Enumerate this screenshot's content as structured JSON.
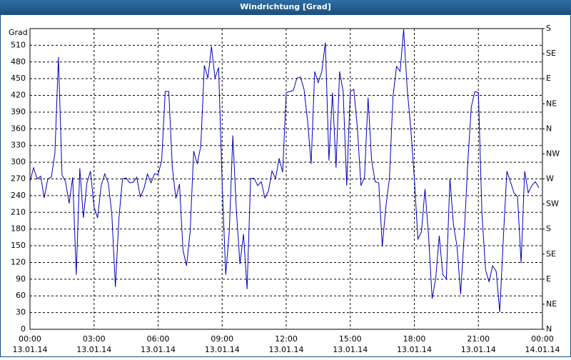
{
  "chart_data": {
    "type": "line",
    "title": "Windrichtung [Grad]",
    "ylabel": "Grad",
    "x": [
      0,
      10,
      20,
      30,
      40,
      50,
      60,
      70,
      80,
      90,
      100,
      110,
      120,
      130,
      140,
      150,
      160,
      170,
      180,
      190,
      200,
      210,
      220,
      230,
      240,
      250,
      260,
      270,
      280,
      290,
      300,
      310,
      320,
      330,
      340,
      350,
      360,
      370,
      380,
      390,
      400,
      410,
      420,
      430,
      440,
      450,
      460,
      470,
      480,
      490,
      500,
      510,
      520,
      530,
      540,
      550,
      560,
      570,
      580,
      590,
      600,
      610,
      620,
      630,
      640,
      650,
      660,
      670,
      680,
      690,
      700,
      710,
      720,
      730,
      740,
      750,
      760,
      770,
      780,
      790,
      800,
      810,
      820,
      830,
      840,
      850,
      860,
      870,
      880,
      890,
      900,
      910,
      920,
      930,
      940,
      950,
      960,
      970,
      980,
      990,
      1000,
      1010,
      1020,
      1030,
      1040,
      1050,
      1060,
      1070,
      1080,
      1090,
      1100,
      1110,
      1120,
      1130,
      1140,
      1150,
      1160,
      1170,
      1180,
      1190,
      1200,
      1210,
      1220,
      1230,
      1240,
      1250,
      1260,
      1270,
      1280,
      1290,
      1300,
      1310,
      1320,
      1330,
      1340,
      1350,
      1360,
      1370,
      1380,
      1390,
      1400,
      1410,
      1420,
      1430
    ],
    "series": [
      {
        "color": "#0000c0",
        "values": [
          265,
          290,
          270,
          275,
          236,
          270,
          273,
          316,
          489,
          277,
          265,
          226,
          273,
          98,
          289,
          200,
          263,
          284,
          220,
          200,
          258,
          279,
          263,
          207,
          76,
          200,
          270,
          272,
          263,
          264,
          273,
          238,
          252,
          279,
          263,
          279,
          278,
          303,
          427,
          427,
          290,
          235,
          261,
          142,
          114,
          175,
          320,
          297,
          329,
          474,
          451,
          508,
          451,
          470,
          262,
          98,
          175,
          348,
          213,
          117,
          171,
          72,
          271,
          271,
          258,
          265,
          236,
          248,
          284,
          271,
          307,
          282,
          425,
          427,
          429,
          451,
          453,
          431,
          374,
          297,
          463,
          443,
          463,
          515,
          303,
          425,
          290,
          463,
          427,
          258,
          427,
          431,
          361,
          258,
          273,
          416,
          303,
          265,
          263,
          149,
          220,
          271,
          418,
          472,
          463,
          539,
          431,
          361,
          271,
          162,
          175,
          252,
          168,
          55,
          91,
          168,
          98,
          91,
          271,
          187,
          149,
          63,
          168,
          297,
          399,
          427,
          425,
          207,
          107,
          85,
          114,
          104,
          31,
          162,
          284,
          265,
          245,
          238,
          119,
          284,
          245,
          258,
          265,
          254
        ]
      }
    ],
    "xlim": [
      0,
      1440
    ],
    "xticks": [
      {
        "value": 0,
        "label": "00:00",
        "date": "13.01.14"
      },
      {
        "value": 180,
        "label": "03:00",
        "date": "13.01.14"
      },
      {
        "value": 360,
        "label": "06:00",
        "date": "13.01.14"
      },
      {
        "value": 540,
        "label": "09:00",
        "date": "13.01.14"
      },
      {
        "value": 720,
        "label": "12:00",
        "date": "13.01.14"
      },
      {
        "value": 900,
        "label": "15:00",
        "date": "13.01.14"
      },
      {
        "value": 1080,
        "label": "18:00",
        "date": "13.01.14"
      },
      {
        "value": 1260,
        "label": "21:00",
        "date": "13.01.14"
      },
      {
        "value": 1440,
        "label": "00:00",
        "date": "14.01.14"
      }
    ],
    "ylim": [
      0,
      540
    ],
    "yticks": [
      0,
      30,
      60,
      90,
      120,
      150,
      180,
      210,
      240,
      270,
      300,
      330,
      360,
      390,
      420,
      450,
      480,
      510
    ],
    "y2lim": [
      0,
      540
    ],
    "y2ticks": [
      {
        "value": 0,
        "label": "N"
      },
      {
        "value": 45,
        "label": "NE"
      },
      {
        "value": 90,
        "label": "E"
      },
      {
        "value": 135,
        "label": "SE"
      },
      {
        "value": 180,
        "label": "S"
      },
      {
        "value": 225,
        "label": "SW"
      },
      {
        "value": 270,
        "label": "W"
      },
      {
        "value": 315,
        "label": "NW"
      },
      {
        "value": 360,
        "label": "N"
      },
      {
        "value": 405,
        "label": "NE"
      },
      {
        "value": 450,
        "label": "E"
      },
      {
        "value": 495,
        "label": "SE"
      },
      {
        "value": 540,
        "label": "S"
      }
    ],
    "grid": true
  }
}
